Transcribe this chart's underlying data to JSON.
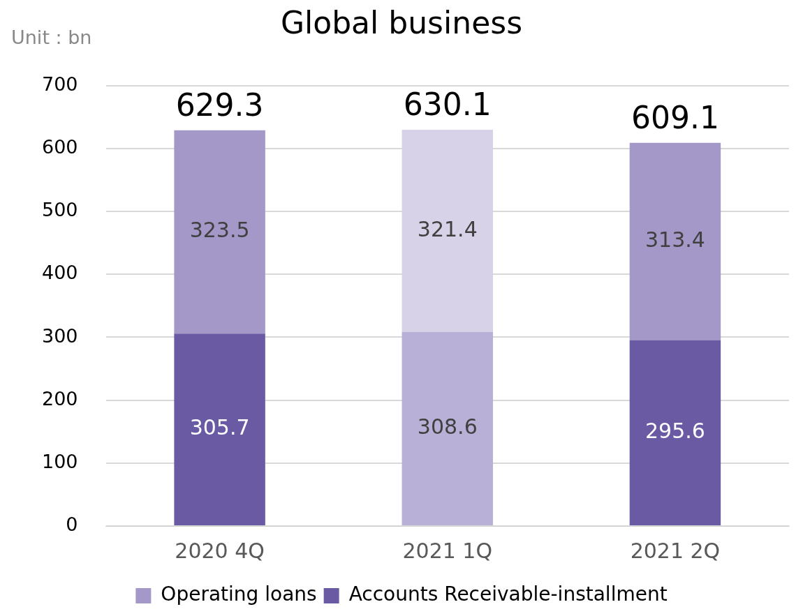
{
  "chart_data": {
    "type": "bar",
    "title": "Global business",
    "annotations": [
      "Unit : bn"
    ],
    "categories": [
      "2020 4Q",
      "2021 1Q",
      "2021 2Q"
    ],
    "stacked": true,
    "series": [
      {
        "name": "Accounts Receivable-installment",
        "color": "#6a5aa3",
        "colors": [
          "#6a5aa3",
          "#b8b0d6",
          "#6a5aa3"
        ],
        "values": [
          305.7,
          308.6,
          295.6
        ]
      },
      {
        "name": "Operating loans",
        "color": "#a398c8",
        "colors": [
          "#a398c8",
          "#d8d2e8",
          "#a398c8"
        ],
        "values": [
          323.5,
          321.4,
          313.4
        ]
      }
    ],
    "totals": [
      "629.3",
      "630.1",
      "609.1"
    ],
    "data_labels": true,
    "ylim": [
      0,
      700
    ],
    "yticks": [
      0,
      100,
      200,
      300,
      400,
      500,
      600,
      700
    ],
    "grid": "y",
    "legend": "bottom"
  }
}
